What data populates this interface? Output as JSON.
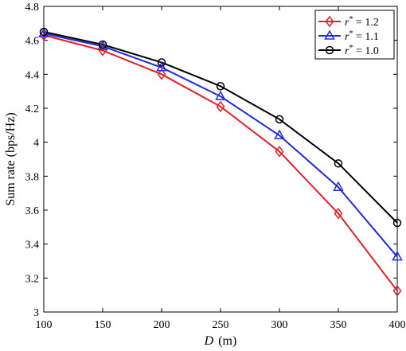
{
  "chart_data": {
    "type": "line",
    "xlabel_var": "D",
    "xlabel_unit": "(m)",
    "ylabel": "Sum rate (bps/Hz)",
    "x": [
      100,
      150,
      200,
      250,
      300,
      350,
      400
    ],
    "xlim": [
      100,
      400
    ],
    "ylim": [
      3,
      4.8
    ],
    "x_ticks": [
      "100",
      "150",
      "200",
      "250",
      "300",
      "350",
      "400"
    ],
    "y_ticks": [
      "3",
      "3.2",
      "3.4",
      "3.6",
      "3.8",
      "4",
      "4.2",
      "4.4",
      "4.6",
      "4.8"
    ],
    "grid": false,
    "legend_position": "top-right",
    "series": [
      {
        "name": "1.2",
        "legend_var": "r",
        "legend_sup": "*",
        "legend_eq": " = 1.2",
        "color": "#e8202a",
        "marker": "diamond",
        "values": [
          4.63,
          4.54,
          4.4,
          4.21,
          3.945,
          3.58,
          3.125
        ]
      },
      {
        "name": "1.1",
        "legend_var": "r",
        "legend_sup": "*",
        "legend_eq": " = 1.1",
        "color": "#1f2de0",
        "marker": "triangle",
        "values": [
          4.64,
          4.565,
          4.44,
          4.27,
          4.04,
          3.735,
          3.325
        ]
      },
      {
        "name": "1.0",
        "legend_var": "r",
        "legend_sup": "*",
        "legend_eq": " = 1.0",
        "color": "#000000",
        "marker": "circle",
        "values": [
          4.65,
          4.575,
          4.47,
          4.33,
          4.135,
          3.875,
          3.525
        ]
      }
    ]
  }
}
